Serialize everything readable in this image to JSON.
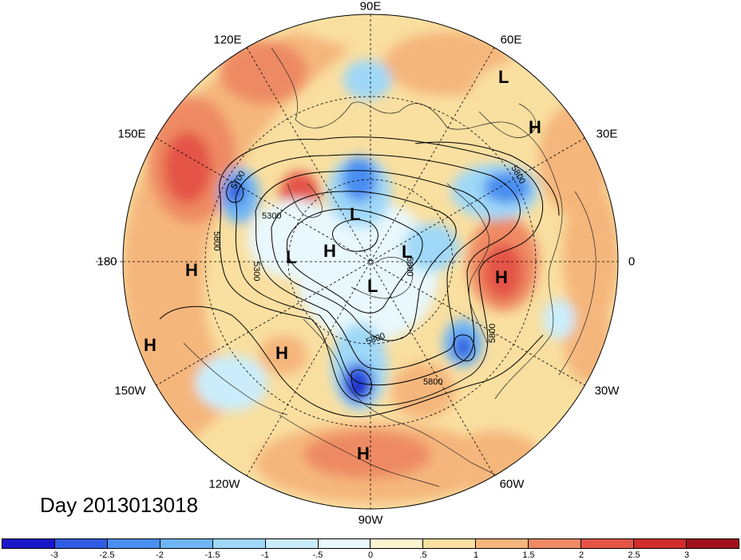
{
  "title": "Day 2013013018",
  "longitude_labels": {
    "lon_90e": "90E",
    "lon_120e": "120E",
    "lon_60e": "60E",
    "lon_150e": "150E",
    "lon_30e": "30E",
    "lon_180": "180",
    "lon_0": "0",
    "lon_150w": "150W",
    "lon_30w": "30W",
    "lon_120w": "120W",
    "lon_60w": "60W",
    "lon_90w": "90W"
  },
  "pressure_centers": [
    {
      "name": "high-center",
      "label": "H"
    },
    {
      "name": "high-center",
      "label": "H"
    },
    {
      "name": "high-center",
      "label": "H"
    },
    {
      "name": "high-center",
      "label": "H"
    },
    {
      "name": "high-center",
      "label": "H"
    },
    {
      "name": "high-center",
      "label": "H"
    },
    {
      "name": "high-center",
      "label": "H"
    },
    {
      "name": "low-center",
      "label": "L"
    },
    {
      "name": "low-center",
      "label": "L"
    },
    {
      "name": "low-center",
      "label": "L"
    },
    {
      "name": "low-center",
      "label": "L"
    },
    {
      "name": "low-center",
      "label": "L"
    }
  ],
  "contour_labels": [
    "5700",
    "5300",
    "5800",
    "5300",
    "5800",
    "5800",
    "5800",
    "5800",
    "5800"
  ],
  "colorbar": {
    "ticks": [
      "-3",
      "-2.5",
      "-2",
      "-1.5",
      "-1",
      "-.5",
      "0",
      ".5",
      "1",
      "1.5",
      "2",
      "2.5",
      "3"
    ],
    "colors": [
      "#1a17c8",
      "#2f5ce0",
      "#4a8ef0",
      "#6fb5f6",
      "#9fd8f8",
      "#cbedfb",
      "#e8f8fc",
      "#fdf5cf",
      "#f9dfa0",
      "#f5b67c",
      "#ee8a64",
      "#e45447",
      "#d12c2c",
      "#a0101a"
    ]
  }
}
